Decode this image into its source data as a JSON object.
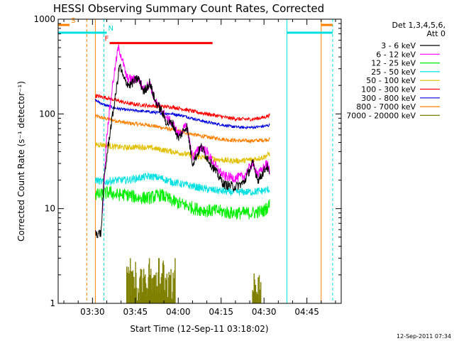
{
  "chart_data": {
    "type": "line",
    "title": "HESSI Observing Summary Count Rates, Corrected",
    "xlabel": "Start Time (12-Sep-11 03:18:02)",
    "ylabel": "Corrected Count Rate (s⁻¹ detector⁻¹)",
    "x_unit": "minutes",
    "xlim": [
      "03:18",
      "04:57"
    ],
    "ylim": [
      1,
      1000
    ],
    "yscale": "log",
    "grid": false,
    "legend_position": "right",
    "xticks": [
      "03:30",
      "03:45",
      "04:00",
      "04:15",
      "04:30",
      "04:45"
    ],
    "yticks": [
      {
        "value": 1,
        "label": "1"
      },
      {
        "value": 10,
        "label": "10"
      },
      {
        "value": 100,
        "label": "100"
      },
      {
        "value": 1000,
        "label": "1000"
      }
    ],
    "legend_header": [
      "Det 1,3,4,5,6,",
      "Att 0"
    ],
    "timestamp": "12-Sep-2011 07:34",
    "series": [
      {
        "name": "3 - 6 keV",
        "color": "#000000",
        "noise": 0.05,
        "points": [
          [
            "03:31",
            5.5
          ],
          [
            "03:33",
            5.5
          ],
          [
            "03:34",
            20
          ],
          [
            "03:36",
            60
          ],
          [
            "03:38",
            150
          ],
          [
            "03:39.5",
            330
          ],
          [
            "03:41",
            230
          ],
          [
            "03:43",
            200
          ],
          [
            "03:46",
            240
          ],
          [
            "03:48",
            170
          ],
          [
            "03:50",
            215
          ],
          [
            "03:52",
            135
          ],
          [
            "03:54",
            110
          ],
          [
            "03:56",
            80
          ],
          [
            "03:58",
            80
          ],
          [
            "04:00",
            55
          ],
          [
            "04:03",
            75
          ],
          [
            "04:05",
            30
          ],
          [
            "04:08",
            45
          ],
          [
            "04:10",
            35
          ],
          [
            "04:13",
            25
          ],
          [
            "04:16",
            18
          ],
          [
            "04:20",
            17
          ],
          [
            "04:23",
            19
          ],
          [
            "04:26",
            30
          ],
          [
            "04:28",
            20
          ],
          [
            "04:31",
            28
          ],
          [
            "04:32",
            22
          ]
        ]
      },
      {
        "name": "6 - 12 keV",
        "color": "#ff00ff",
        "noise": 0.05,
        "points": [
          [
            "03:33.5",
            10
          ],
          [
            "03:35",
            60
          ],
          [
            "03:37",
            200
          ],
          [
            "03:39",
            500
          ],
          [
            "03:40",
            420
          ],
          [
            "03:42",
            240
          ],
          [
            "03:44",
            230
          ],
          [
            "03:46",
            235
          ],
          [
            "03:48",
            180
          ],
          [
            "03:50",
            210
          ],
          [
            "03:52",
            135
          ],
          [
            "03:54",
            110
          ],
          [
            "03:56",
            90
          ],
          [
            "03:58",
            80
          ],
          [
            "04:00",
            60
          ],
          [
            "04:03",
            75
          ],
          [
            "04:05",
            35
          ],
          [
            "04:08",
            45
          ],
          [
            "04:10",
            40
          ],
          [
            "04:13",
            28
          ],
          [
            "04:16",
            22
          ],
          [
            "04:20",
            21
          ],
          [
            "04:23",
            22
          ],
          [
            "04:26",
            30
          ],
          [
            "04:28",
            23
          ],
          [
            "04:31",
            30
          ],
          [
            "04:32",
            25
          ]
        ]
      },
      {
        "name": "12 - 25 keV",
        "color": "#00ee00",
        "noise": 0.07,
        "points": [
          [
            "03:31",
            14
          ],
          [
            "03:33",
            14
          ],
          [
            "03:36",
            15
          ],
          [
            "03:38",
            14
          ],
          [
            "03:42",
            14
          ],
          [
            "03:46",
            13
          ],
          [
            "03:50",
            13
          ],
          [
            "03:54",
            14
          ],
          [
            "03:58",
            12
          ],
          [
            "04:02",
            11
          ],
          [
            "04:06",
            10
          ],
          [
            "04:10",
            9.5
          ],
          [
            "04:14",
            9.5
          ],
          [
            "04:18",
            9
          ],
          [
            "04:22",
            9
          ],
          [
            "04:26",
            9
          ],
          [
            "04:30",
            9.5
          ],
          [
            "04:32",
            11
          ]
        ]
      },
      {
        "name": "25 - 50 keV",
        "color": "#00e0e0",
        "noise": 0.04,
        "points": [
          [
            "03:31",
            20
          ],
          [
            "03:34",
            19
          ],
          [
            "03:38",
            20
          ],
          [
            "03:42",
            20
          ],
          [
            "03:46",
            21
          ],
          [
            "03:50",
            22
          ],
          [
            "03:54",
            21
          ],
          [
            "03:58",
            19
          ],
          [
            "04:02",
            18
          ],
          [
            "04:06",
            17
          ],
          [
            "04:10",
            16
          ],
          [
            "04:14",
            15.5
          ],
          [
            "04:18",
            15
          ],
          [
            "04:22",
            15
          ],
          [
            "04:26",
            15
          ],
          [
            "04:30",
            15.5
          ],
          [
            "04:32",
            16
          ]
        ]
      },
      {
        "name": "50 - 100 keV",
        "color": "#e0c000",
        "noise": 0.03,
        "points": [
          [
            "03:31",
            48
          ],
          [
            "03:34",
            47
          ],
          [
            "03:38",
            45
          ],
          [
            "03:42",
            44
          ],
          [
            "03:46",
            45
          ],
          [
            "03:50",
            44
          ],
          [
            "03:54",
            42
          ],
          [
            "03:58",
            40
          ],
          [
            "04:02",
            38
          ],
          [
            "04:06",
            36
          ],
          [
            "04:10",
            34
          ],
          [
            "04:14",
            33
          ],
          [
            "04:18",
            32
          ],
          [
            "04:22",
            32
          ],
          [
            "04:26",
            33
          ],
          [
            "04:30",
            35
          ],
          [
            "04:32",
            38
          ]
        ]
      },
      {
        "name": "100 - 300 keV",
        "color": "#ff0000",
        "noise": 0.02,
        "points": [
          [
            "03:31",
            155
          ],
          [
            "03:34",
            150
          ],
          [
            "03:38",
            140
          ],
          [
            "03:42",
            130
          ],
          [
            "03:46",
            125
          ],
          [
            "03:50",
            122
          ],
          [
            "03:54",
            120
          ],
          [
            "03:58",
            118
          ],
          [
            "04:02",
            112
          ],
          [
            "04:06",
            105
          ],
          [
            "04:10",
            100
          ],
          [
            "04:14",
            95
          ],
          [
            "04:18",
            90
          ],
          [
            "04:22",
            88
          ],
          [
            "04:26",
            88
          ],
          [
            "04:30",
            92
          ],
          [
            "04:32",
            97
          ]
        ]
      },
      {
        "name": "300 - 800 keV",
        "color": "#0000dd",
        "noise": 0.015,
        "points": [
          [
            "03:31",
            140
          ],
          [
            "03:34",
            125
          ],
          [
            "03:38",
            115
          ],
          [
            "03:42",
            110
          ],
          [
            "03:46",
            108
          ],
          [
            "03:50",
            105
          ],
          [
            "03:54",
            102
          ],
          [
            "03:58",
            100
          ],
          [
            "04:02",
            95
          ],
          [
            "04:06",
            88
          ],
          [
            "04:10",
            82
          ],
          [
            "04:14",
            78
          ],
          [
            "04:18",
            74
          ],
          [
            "04:22",
            72
          ],
          [
            "04:26",
            72
          ],
          [
            "04:30",
            74
          ],
          [
            "04:32",
            76
          ]
        ]
      },
      {
        "name": "800 - 7000 keV",
        "color": "#ff8000",
        "noise": 0.02,
        "points": [
          [
            "03:31",
            95
          ],
          [
            "03:34",
            90
          ],
          [
            "03:38",
            85
          ],
          [
            "03:42",
            80
          ],
          [
            "03:46",
            78
          ],
          [
            "03:50",
            76
          ],
          [
            "03:54",
            72
          ],
          [
            "03:58",
            68
          ],
          [
            "04:02",
            64
          ],
          [
            "04:06",
            60
          ],
          [
            "04:10",
            57
          ],
          [
            "04:14",
            55
          ],
          [
            "04:18",
            53
          ],
          [
            "04:22",
            52
          ],
          [
            "04:26",
            52
          ],
          [
            "04:30",
            53
          ],
          [
            "04:32",
            54
          ]
        ]
      },
      {
        "name": "7000 - 20000 keV",
        "color": "#808000",
        "noise": 0,
        "points": []
      }
    ],
    "annotations": [
      {
        "label": "S",
        "color": "#ff8000",
        "bar": [
          "03:18",
          "03:22"
        ],
        "bar_y": 870,
        "vlines": [
          "03:28"
        ]
      },
      {
        "label": "N",
        "color": "#00e0e0",
        "bar": [
          "03:18",
          "03:35"
        ],
        "bar_y": 720,
        "vlines": [
          "03:34"
        ]
      },
      {
        "label": "F",
        "color": "#ff0000",
        "bar": [
          "03:36",
          "04:12"
        ],
        "bar_y": 560,
        "vlines": []
      }
    ],
    "night_intervals": [
      {
        "color": "#00e0e0",
        "start": "04:38",
        "end": "04:54",
        "bar_y": 720
      },
      {
        "color": "#ff8000",
        "start": "04:50",
        "end": "04:54",
        "bar_y": 870
      }
    ],
    "solid_vlines": [
      {
        "color": "#ff8000",
        "time": "03:31"
      },
      {
        "color": "#ff8000",
        "time": "04:50"
      },
      {
        "color": "#00e0e0",
        "time": "04:38"
      }
    ],
    "dashed_vlines_right": [
      {
        "color": "#00e0e0",
        "time": "04:54"
      }
    ]
  }
}
